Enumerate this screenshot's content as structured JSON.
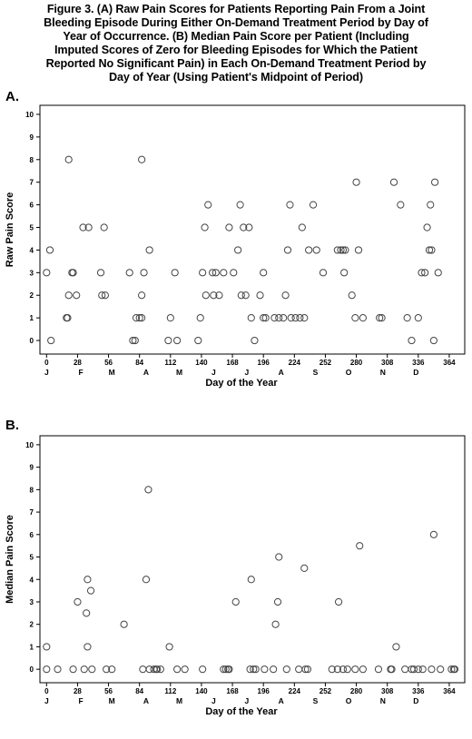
{
  "caption": {
    "line1": "Figure 3. (A) Raw Pain Scores for Patients Reporting Pain From a Joint",
    "line2": "Bleeding Episode During Either On-Demand Treatment Period by Day of",
    "line3": "Year of Occurrence.  (B) Median Pain Score per Patient (Including",
    "line4": "Imputed Scores of Zero for Bleeding Episodes for Which the Patient",
    "line5": "Reported No Significant Pain) in Each On-Demand Treatment Period by",
    "line6": "Day of Year (Using Patient's Midpoint of Period)"
  },
  "colors": {
    "marker": "#444444",
    "axis": "#000000",
    "background": "#ffffff"
  },
  "chart_data": [
    {
      "panel": "A.",
      "type": "scatter",
      "xlabel": "Day of the Year",
      "ylabel": "Raw Pain Score",
      "xlim": [
        -6,
        378
      ],
      "ylim": [
        -0.6,
        10.4
      ],
      "xticks": [
        0,
        28,
        56,
        84,
        112,
        140,
        168,
        196,
        224,
        252,
        280,
        308,
        336,
        364
      ],
      "yticks": [
        0,
        1,
        2,
        3,
        4,
        5,
        6,
        7,
        8,
        9,
        10
      ],
      "months": [
        {
          "label": "J",
          "day": 0
        },
        {
          "label": "F",
          "day": 31
        },
        {
          "label": "M",
          "day": 59
        },
        {
          "label": "A",
          "day": 90
        },
        {
          "label": "M",
          "day": 120
        },
        {
          "label": "J",
          "day": 151
        },
        {
          "label": "J",
          "day": 181
        },
        {
          "label": "A",
          "day": 212
        },
        {
          "label": "S",
          "day": 243
        },
        {
          "label": "O",
          "day": 273
        },
        {
          "label": "N",
          "day": 304
        },
        {
          "label": "D",
          "day": 334
        }
      ],
      "points": [
        [
          0,
          3
        ],
        [
          3,
          4
        ],
        [
          4,
          0
        ],
        [
          18,
          1
        ],
        [
          19,
          1
        ],
        [
          20,
          2
        ],
        [
          20,
          8
        ],
        [
          23,
          3
        ],
        [
          24,
          3
        ],
        [
          27,
          2
        ],
        [
          33,
          5
        ],
        [
          38,
          5
        ],
        [
          49,
          3
        ],
        [
          50,
          2
        ],
        [
          52,
          5
        ],
        [
          53,
          2
        ],
        [
          75,
          3
        ],
        [
          78,
          0
        ],
        [
          80,
          0
        ],
        [
          81,
          1
        ],
        [
          84,
          1
        ],
        [
          86,
          1
        ],
        [
          86,
          2
        ],
        [
          86,
          8
        ],
        [
          88,
          3
        ],
        [
          93,
          4
        ],
        [
          110,
          0
        ],
        [
          112,
          1
        ],
        [
          116,
          3
        ],
        [
          118,
          0
        ],
        [
          137,
          0
        ],
        [
          139,
          1
        ],
        [
          141,
          3
        ],
        [
          143,
          5
        ],
        [
          144,
          2
        ],
        [
          146,
          6
        ],
        [
          150,
          3
        ],
        [
          151,
          2
        ],
        [
          153,
          3
        ],
        [
          156,
          2
        ],
        [
          160,
          3
        ],
        [
          165,
          5
        ],
        [
          169,
          3
        ],
        [
          173,
          4
        ],
        [
          175,
          6
        ],
        [
          176,
          2
        ],
        [
          178,
          5
        ],
        [
          180,
          2
        ],
        [
          183,
          5
        ],
        [
          185,
          1
        ],
        [
          188,
          0
        ],
        [
          193,
          2
        ],
        [
          196,
          3
        ],
        [
          196,
          1
        ],
        [
          198,
          1
        ],
        [
          206,
          1
        ],
        [
          210,
          1
        ],
        [
          214,
          1
        ],
        [
          216,
          2
        ],
        [
          218,
          4
        ],
        [
          220,
          6
        ],
        [
          221,
          1
        ],
        [
          225,
          1
        ],
        [
          229,
          1
        ],
        [
          231,
          5
        ],
        [
          233,
          1
        ],
        [
          237,
          4
        ],
        [
          241,
          6
        ],
        [
          244,
          4
        ],
        [
          250,
          3
        ],
        [
          263,
          4
        ],
        [
          266,
          4
        ],
        [
          268,
          4
        ],
        [
          269,
          3
        ],
        [
          270,
          4
        ],
        [
          276,
          2
        ],
        [
          279,
          1
        ],
        [
          280,
          7
        ],
        [
          282,
          4
        ],
        [
          286,
          1
        ],
        [
          301,
          1
        ],
        [
          303,
          1
        ],
        [
          314,
          7
        ],
        [
          320,
          6
        ],
        [
          326,
          1
        ],
        [
          330,
          0
        ],
        [
          336,
          1
        ],
        [
          339,
          3
        ],
        [
          342,
          3
        ],
        [
          344,
          5
        ],
        [
          346,
          4
        ],
        [
          347,
          6
        ],
        [
          348,
          4
        ],
        [
          350,
          0
        ],
        [
          351,
          7
        ],
        [
          354,
          3
        ]
      ]
    },
    {
      "panel": "B.",
      "type": "scatter",
      "xlabel": "Day of the Year",
      "ylabel": "Median Pain Score",
      "xlim": [
        -6,
        378
      ],
      "ylim": [
        -0.6,
        10.4
      ],
      "xticks": [
        0,
        28,
        56,
        84,
        112,
        140,
        168,
        196,
        224,
        252,
        280,
        308,
        336,
        364
      ],
      "yticks": [
        0,
        1,
        2,
        3,
        4,
        5,
        6,
        7,
        8,
        9,
        10
      ],
      "months": [
        {
          "label": "J",
          "day": 0
        },
        {
          "label": "F",
          "day": 31
        },
        {
          "label": "M",
          "day": 59
        },
        {
          "label": "A",
          "day": 90
        },
        {
          "label": "M",
          "day": 120
        },
        {
          "label": "J",
          "day": 151
        },
        {
          "label": "J",
          "day": 181
        },
        {
          "label": "A",
          "day": 212
        },
        {
          "label": "S",
          "day": 243
        },
        {
          "label": "O",
          "day": 273
        },
        {
          "label": "N",
          "day": 304
        },
        {
          "label": "D",
          "day": 334
        }
      ],
      "points": [
        [
          0,
          1
        ],
        [
          0,
          0
        ],
        [
          10,
          0
        ],
        [
          24,
          0
        ],
        [
          28,
          3
        ],
        [
          34,
          0
        ],
        [
          36,
          2.5
        ],
        [
          37,
          1
        ],
        [
          37,
          4
        ],
        [
          40,
          3.5
        ],
        [
          41,
          0
        ],
        [
          54,
          0
        ],
        [
          59,
          0
        ],
        [
          70,
          2
        ],
        [
          87,
          0
        ],
        [
          90,
          4
        ],
        [
          92,
          8
        ],
        [
          93,
          0
        ],
        [
          97,
          0
        ],
        [
          99,
          0
        ],
        [
          100,
          0
        ],
        [
          103,
          0
        ],
        [
          111,
          1
        ],
        [
          118,
          0
        ],
        [
          125,
          0
        ],
        [
          141,
          0
        ],
        [
          160,
          0
        ],
        [
          162,
          0
        ],
        [
          164,
          0
        ],
        [
          165,
          0
        ],
        [
          171,
          3
        ],
        [
          184,
          0
        ],
        [
          185,
          4
        ],
        [
          187,
          0
        ],
        [
          189,
          0
        ],
        [
          197,
          0
        ],
        [
          205,
          0
        ],
        [
          207,
          2
        ],
        [
          209,
          3
        ],
        [
          210,
          5
        ],
        [
          217,
          0
        ],
        [
          228,
          0
        ],
        [
          233,
          4.5
        ],
        [
          234,
          0
        ],
        [
          236,
          0
        ],
        [
          258,
          0
        ],
        [
          263,
          0
        ],
        [
          264,
          3
        ],
        [
          268,
          0
        ],
        [
          272,
          0
        ],
        [
          279,
          0
        ],
        [
          283,
          5.5
        ],
        [
          286,
          0
        ],
        [
          300,
          0
        ],
        [
          311,
          0
        ],
        [
          312,
          0
        ],
        [
          316,
          1
        ],
        [
          324,
          0
        ],
        [
          330,
          0
        ],
        [
          332,
          0
        ],
        [
          336,
          0
        ],
        [
          340,
          0
        ],
        [
          348,
          0
        ],
        [
          350,
          6
        ],
        [
          356,
          0
        ],
        [
          366,
          0
        ],
        [
          368,
          0
        ],
        [
          369,
          0
        ]
      ]
    }
  ]
}
